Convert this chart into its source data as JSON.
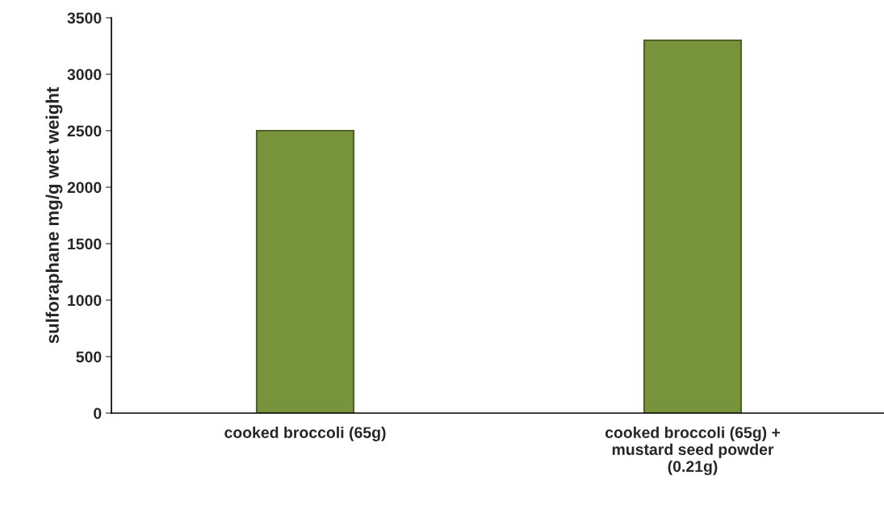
{
  "chart_data": {
    "type": "bar",
    "ylabel": "sulforaphane mg/g wet weight",
    "categories": [
      "cooked broccoli (65g)",
      "cooked broccoli (65g) +\nmustard seed powder\n(0.21g)"
    ],
    "values": [
      2500,
      3300
    ],
    "color": "#77933c",
    "ylim": [
      0,
      3500
    ],
    "yticks": [
      0,
      500,
      1000,
      1500,
      2000,
      2500,
      3000,
      3500
    ],
    "grid": false,
    "legend": false
  }
}
